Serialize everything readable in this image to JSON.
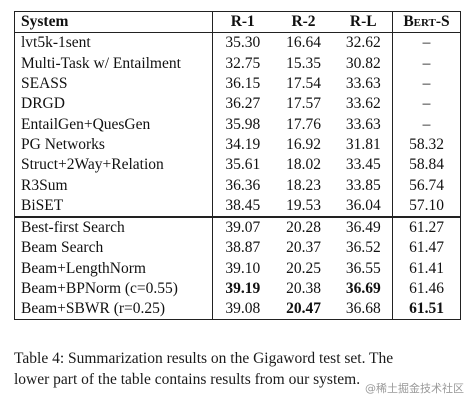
{
  "table": {
    "headers": [
      "System",
      "R-1",
      "R-2",
      "R-L",
      "Bert-S"
    ],
    "upper_rows": [
      [
        "lvt5k-1sent",
        "35.30",
        "16.64",
        "32.62",
        "–"
      ],
      [
        "Multi-Task w/ Entailment",
        "32.75",
        "15.35",
        "30.82",
        "–"
      ],
      [
        "SEASS",
        "36.15",
        "17.54",
        "33.63",
        "–"
      ],
      [
        "DRGD",
        "36.27",
        "17.57",
        "33.62",
        "–"
      ],
      [
        "EntailGen+QuesGen",
        "35.98",
        "17.76",
        "33.63",
        "–"
      ],
      [
        "PG Networks",
        "34.19",
        "16.92",
        "31.81",
        "58.32"
      ],
      [
        "Struct+2Way+Relation",
        "35.61",
        "18.02",
        "33.45",
        "58.84"
      ],
      [
        "R3Sum",
        "36.36",
        "18.23",
        "33.85",
        "56.74"
      ],
      [
        "BiSET",
        "38.45",
        "19.53",
        "36.04",
        "57.10"
      ]
    ],
    "lower_rows": [
      [
        "Best-first Search",
        "39.07",
        "20.28",
        "36.49",
        "61.27"
      ],
      [
        "Beam Search",
        "38.87",
        "20.37",
        "36.52",
        "61.47"
      ],
      [
        "Beam+LengthNorm",
        "39.10",
        "20.25",
        "36.55",
        "61.41"
      ],
      [
        "Beam+BPNorm (c=0.55)",
        "39.19",
        "20.38",
        "36.69",
        "61.46"
      ],
      [
        "Beam+SBWR (r=0.25)",
        "39.08",
        "20.47",
        "36.68",
        "61.51"
      ]
    ],
    "bold_cells": [
      [
        3,
        1
      ],
      [
        3,
        3
      ],
      [
        4,
        2
      ],
      [
        4,
        4
      ]
    ]
  },
  "caption": {
    "line1": "Table 4: Summarization results on the Gigaword test set. The",
    "line2": "lower part of the table contains results from our system."
  },
  "watermark": "@稀土掘金技术社区"
}
